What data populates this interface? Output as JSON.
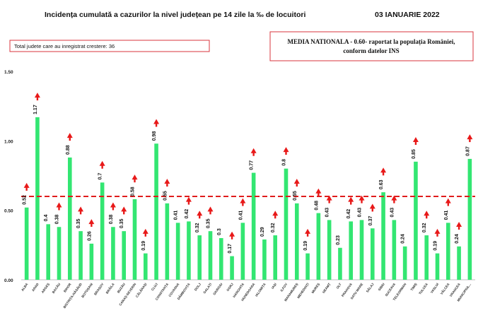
{
  "header": {
    "title": "Incidența cumulată a cazurilor la nivel județean pe 14 zile la ‰ de locuitori",
    "date": "03 IANUARIE 2022",
    "increase_note": "Total judete care au inregistrat crestere: 36",
    "national_line1": "MEDIA NATIONALA - 0.60-  raportat la populația României,",
    "national_line2": "conform datelor INS"
  },
  "colors": {
    "bar": "#33e672",
    "arrow": "#e81919",
    "reference_line": "#e01c1c",
    "box_border": "#d9363e"
  },
  "chart_data": {
    "type": "bar",
    "ylim": [
      0,
      1.5
    ],
    "yticks": [
      "0.00",
      "0.50",
      "1.00",
      "1.50"
    ],
    "reference_value": 0.6,
    "categories": [
      "ALBA",
      "ARAD",
      "ARGEȘ",
      "BACĂU",
      "BIHOR",
      "BISTRIȚA-NĂSĂUD",
      "BOTOȘANI",
      "BRAȘOV",
      "BRĂILA",
      "BUZĂU",
      "CARAȘ-SEVERIN",
      "CĂLĂRAȘI",
      "CLUJ",
      "CONSTANȚA",
      "COVASNA",
      "DÂMBOVIȚA",
      "DOLJ",
      "GALAȚI",
      "GIURGIU",
      "GORJ",
      "HARGHITA",
      "HUNEDOARA",
      "IALOMIȚA",
      "IAȘI",
      "ILFOV",
      "MARAMUREȘ",
      "MEHEDINȚI",
      "MUREȘ",
      "NEAMȚ",
      "OLT",
      "PRAHOVA",
      "SATU MARE",
      "SĂLAJ",
      "SIBIU",
      "SUCEAVA",
      "TELEORMAN",
      "TIMIȘ",
      "TULCEA",
      "VASLUI",
      "VÂLCEA",
      "VRANCEA",
      "MUNICIPIUL..."
    ],
    "values": [
      0.52,
      1.17,
      0.4,
      0.38,
      0.88,
      0.35,
      0.26,
      0.7,
      0.38,
      0.35,
      0.58,
      0.19,
      0.98,
      0.55,
      0.41,
      0.42,
      0.32,
      0.35,
      0.3,
      0.17,
      0.41,
      0.77,
      0.29,
      0.32,
      0.8,
      0.55,
      0.19,
      0.48,
      0.43,
      0.23,
      0.42,
      0.43,
      0.37,
      0.63,
      0.43,
      0.24,
      0.85,
      0.32,
      0.19,
      0.41,
      0.24,
      0.87
    ],
    "value_labels": [
      "0.52",
      "1.17",
      "0.4",
      "0.38",
      "0.88",
      "0.35",
      "0.26",
      "0.7",
      "0.38",
      "0.35",
      "0.58",
      "0.19",
      "0.98",
      "0.55",
      "0.41",
      "0.42",
      "0.32",
      "0.35",
      "0.3",
      "0.17",
      "0.41",
      "0.77",
      "0.29",
      "0.32",
      "0.8",
      "0.55",
      "0.19",
      "0.48",
      "0.43",
      "0.23",
      "0.42",
      "0.43",
      "0.37",
      "0.63",
      "0.43",
      "0.24",
      "0.85",
      "0.32",
      "0.19",
      "0.41",
      "0.24",
      "0.87"
    ],
    "increase": [
      true,
      true,
      false,
      true,
      true,
      true,
      true,
      true,
      true,
      true,
      true,
      true,
      true,
      true,
      false,
      true,
      true,
      true,
      false,
      true,
      true,
      true,
      false,
      true,
      true,
      true,
      true,
      true,
      true,
      false,
      true,
      true,
      true,
      true,
      true,
      false,
      true,
      true,
      true,
      true,
      true,
      true
    ]
  }
}
